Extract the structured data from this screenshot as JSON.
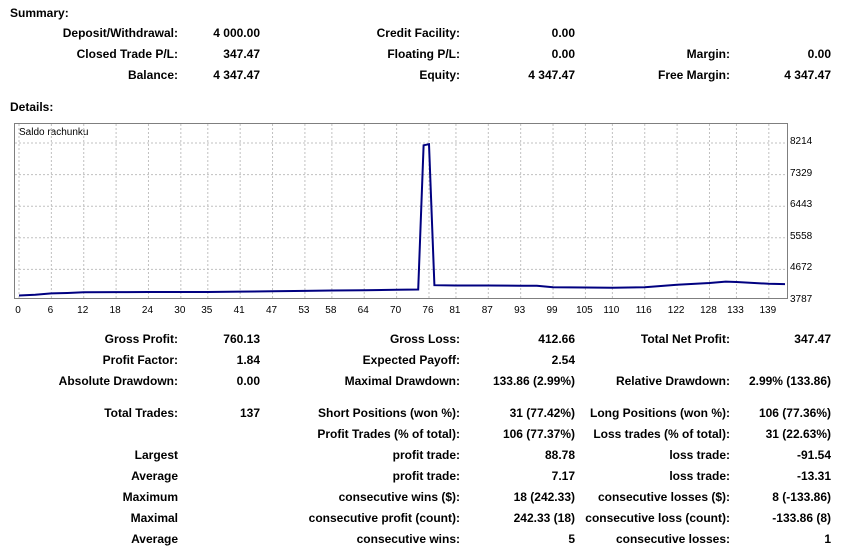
{
  "summary": {
    "title": "Summary:",
    "rows": [
      [
        {
          "label": "Deposit/Withdrawal:",
          "value": "4 000.00"
        },
        {
          "label": "Credit Facility:",
          "value": "0.00"
        },
        {
          "label": "",
          "value": ""
        }
      ],
      [
        {
          "label": "Closed Trade P/L:",
          "value": "347.47"
        },
        {
          "label": "Floating P/L:",
          "value": "0.00"
        },
        {
          "label": "Margin:",
          "value": "0.00"
        }
      ],
      [
        {
          "label": "Balance:",
          "value": "4 347.47"
        },
        {
          "label": "Equity:",
          "value": "4 347.47"
        },
        {
          "label": "Free Margin:",
          "value": "4 347.47"
        }
      ]
    ]
  },
  "details": {
    "title": "Details:"
  },
  "chart_data": {
    "type": "line",
    "title": "Saldo rachunku",
    "x_ticks": [
      "0",
      "6",
      "12",
      "18",
      "24",
      "30",
      "35",
      "41",
      "47",
      "53",
      "58",
      "64",
      "70",
      "76",
      "81",
      "87",
      "93",
      "99",
      "105",
      "110",
      "116",
      "122",
      "128",
      "133",
      "139"
    ],
    "y_ticks": [
      "8214",
      "7329",
      "6443",
      "5558",
      "4672",
      "3787"
    ],
    "ylim": [
      3787,
      8214
    ],
    "xlim": [
      0,
      142
    ],
    "series": [
      {
        "x": [
          0,
          3,
          6,
          9,
          12,
          18,
          24,
          30,
          35,
          41,
          47,
          53,
          58,
          64,
          70,
          74,
          75,
          76,
          77,
          81,
          87,
          93,
          96,
          99,
          105,
          110,
          116,
          122,
          128,
          131,
          133,
          139,
          142
        ],
        "y": [
          3940,
          3960,
          4000,
          4010,
          4030,
          4035,
          4040,
          4040,
          4040,
          4050,
          4060,
          4070,
          4080,
          4090,
          4100,
          4110,
          8150,
          8180,
          4230,
          4220,
          4220,
          4215,
          4215,
          4170,
          4165,
          4160,
          4170,
          4240,
          4290,
          4330,
          4320,
          4270,
          4260
        ]
      }
    ]
  },
  "stats": {
    "gross_profit_label": "Gross Profit:",
    "gross_profit": "760.13",
    "gross_loss_label": "Gross Loss:",
    "gross_loss": "412.66",
    "total_net_profit_label": "Total Net Profit:",
    "total_net_profit": "347.47",
    "profit_factor_label": "Profit Factor:",
    "profit_factor": "1.84",
    "expected_payoff_label": "Expected Payoff:",
    "expected_payoff": "2.54",
    "absolute_drawdown_label": "Absolute Drawdown:",
    "absolute_drawdown": "0.00",
    "maximal_drawdown_label": "Maximal Drawdown:",
    "maximal_drawdown": "133.86 (2.99%)",
    "relative_drawdown_label": "Relative Drawdown:",
    "relative_drawdown": "2.99% (133.86)",
    "total_trades_label": "Total Trades:",
    "total_trades": "137",
    "short_positions_label": "Short Positions (won %):",
    "short_positions": "31 (77.42%)",
    "long_positions_label": "Long Positions (won %):",
    "long_positions": "106 (77.36%)",
    "profit_trades_label": "Profit Trades (% of total):",
    "profit_trades": "106 (77.37%)",
    "loss_trades_label": "Loss trades (% of total):",
    "loss_trades": "31 (22.63%)",
    "largest_label": "Largest",
    "largest_profit_label": "profit trade:",
    "largest_profit": "88.78",
    "largest_loss_label": "loss trade:",
    "largest_loss": "-91.54",
    "average_label": "Average",
    "average_profit_label": "profit trade:",
    "average_profit": "7.17",
    "average_loss_label": "loss trade:",
    "average_loss": "-13.31",
    "maximum_label": "Maximum",
    "max_cons_wins_label": "consecutive wins ($):",
    "max_cons_wins": "18 (242.33)",
    "max_cons_losses_label": "consecutive losses ($):",
    "max_cons_losses": "8 (-133.86)",
    "maximal_label": "Maximal",
    "maximal_cons_profit_label": "consecutive profit (count):",
    "maximal_cons_profit": "242.33 (18)",
    "maximal_cons_loss_label": "consecutive loss (count):",
    "maximal_cons_loss": "-133.86 (8)",
    "average2_label": "Average",
    "avg_cons_wins_label": "consecutive wins:",
    "avg_cons_wins": "5",
    "avg_cons_losses_label": "consecutive losses:",
    "avg_cons_losses": "1"
  },
  "colors": {
    "line": "#000080",
    "grid": "#c0c0c0",
    "border": "#7f7f7f"
  }
}
